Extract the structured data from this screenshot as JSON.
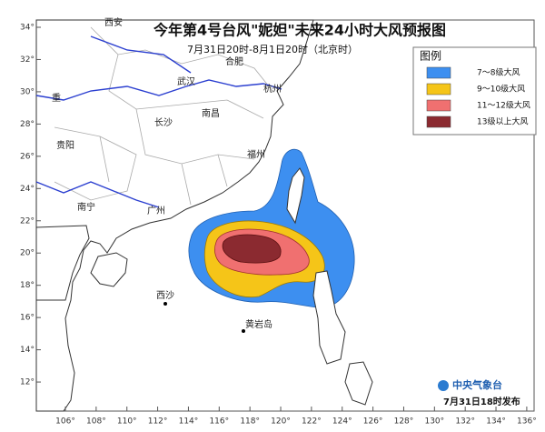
{
  "header": {
    "title": "今年第4号台风\"妮妲\"未来24小时大风预报图",
    "subtitle": "7月31日20时-8月1日20时（北京时）"
  },
  "legend": {
    "title": "图例",
    "items": [
      {
        "label": "7～8级大风",
        "color": "#3d8ff0"
      },
      {
        "label": "9～10级大风",
        "color": "#f5c518"
      },
      {
        "label": "11～12级大风",
        "color": "#f07070"
      },
      {
        "label": "13级以上大风",
        "color": "#8b2a30"
      }
    ]
  },
  "map": {
    "lat_ticks": [
      {
        "value": 34,
        "label": "34°"
      },
      {
        "value": 32,
        "label": "32°"
      },
      {
        "value": 30,
        "label": "30°"
      },
      {
        "value": 28,
        "label": "28°"
      },
      {
        "value": 26,
        "label": "26°"
      },
      {
        "value": 24,
        "label": "24°"
      },
      {
        "value": 22,
        "label": "22°"
      },
      {
        "value": 20,
        "label": "20°"
      },
      {
        "value": 18,
        "label": "18°"
      },
      {
        "value": 16,
        "label": "16°"
      },
      {
        "value": 14,
        "label": "14°"
      },
      {
        "value": 12,
        "label": "12°"
      }
    ],
    "lon_ticks": [
      {
        "value": 106,
        "label": "106°"
      },
      {
        "value": 108,
        "label": "108°"
      },
      {
        "value": 110,
        "label": "110°"
      },
      {
        "value": 112,
        "label": "112°"
      },
      {
        "value": 114,
        "label": "114°"
      },
      {
        "value": 116,
        "label": "116°"
      },
      {
        "value": 118,
        "label": "118°"
      },
      {
        "value": 120,
        "label": "120°"
      },
      {
        "value": 122,
        "label": "122°"
      },
      {
        "value": 124,
        "label": "124°"
      },
      {
        "value": 126,
        "label": "126°"
      },
      {
        "value": 128,
        "label": "128°"
      },
      {
        "value": 130,
        "label": "130°"
      },
      {
        "value": 132,
        "label": "132°"
      },
      {
        "value": 134,
        "label": "134°"
      },
      {
        "value": 136,
        "label": "136°"
      }
    ],
    "cities": [
      "西安",
      "合肥",
      "武汉",
      "杭州",
      "重",
      "长沙",
      "南昌",
      "贵阳",
      "福州",
      "南宁",
      "广州",
      "西沙",
      "黄岩岛"
    ]
  },
  "footer": {
    "agency": "中央气象台",
    "issued": "7月31日18时发布"
  }
}
